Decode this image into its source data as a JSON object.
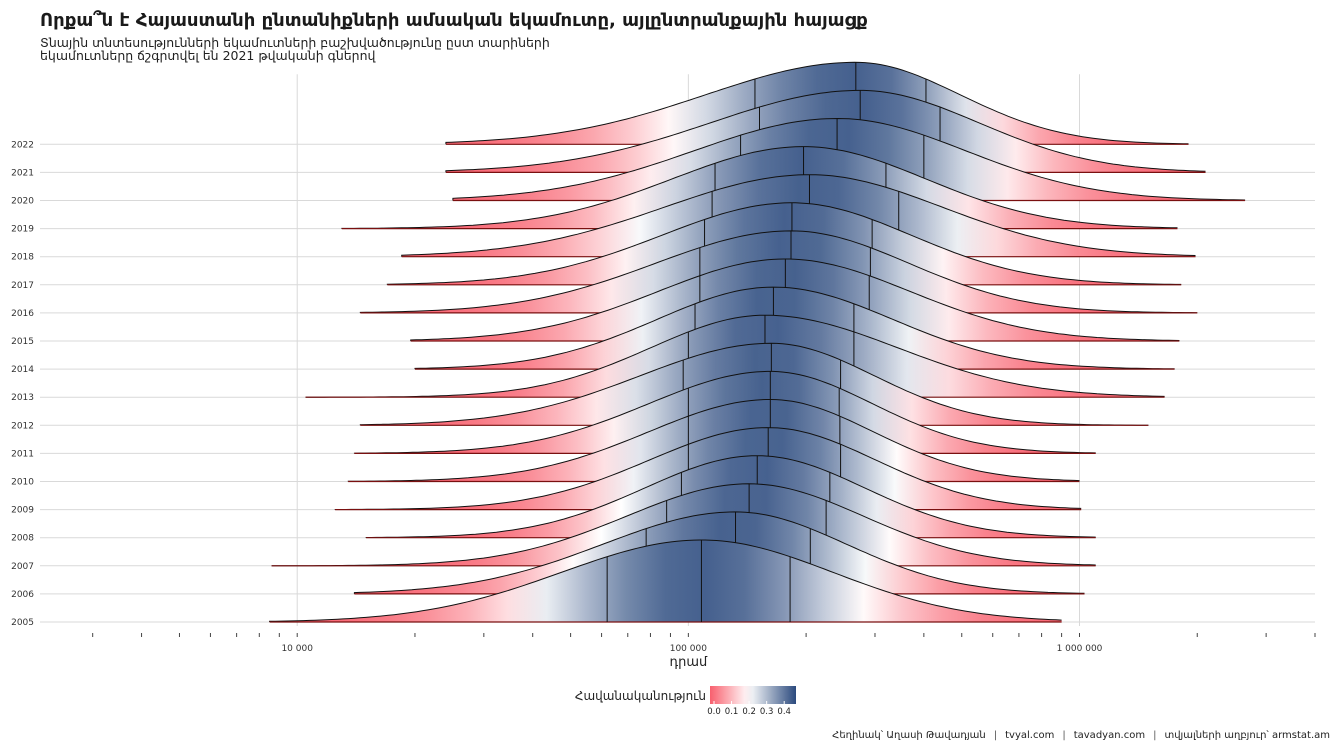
{
  "title": "Որքա՞ն է Հայաստանի ընտանիքների ամսական եկամուտը, այլընտրանքային հայացք",
  "subtitle_line1": "Տնային տնտեսությունների եկամուտների բաշխվածությունը ըստ տարիների",
  "subtitle_line2": "եկամուտները ճշգրտվել են 2021 թվականի գներով",
  "caption": {
    "author": "Հեղինակ՝ Աղասի Թավադյան",
    "site1": "tvyal.com",
    "site2": "tavadyan.com",
    "source": "տվյալների աղբյուր՝ armstat.am",
    "separator": "|"
  },
  "colors": {
    "low": "#f8606e",
    "mid": "#ffffff",
    "high": "#2b4a7e",
    "grid": "#d9d9d9",
    "outline": "#111111"
  },
  "chart_data": {
    "type": "ridgeline",
    "xlabel": "դրամ",
    "x_scale": "log10",
    "xlim": [
      2200,
      4000000
    ],
    "x_ticks": [
      10000,
      100000,
      1000000
    ],
    "x_tick_labels": [
      "10 000",
      "100 000",
      "1 000 000"
    ],
    "legend": {
      "title": "Հավանականություն",
      "position": "bottom",
      "ticks": [
        "0.0",
        "0.1",
        "0.2",
        "0.3",
        "0.4"
      ],
      "range": [
        0,
        0.45
      ]
    },
    "grid": true,
    "series": [
      {
        "year": "2005",
        "min": 8500,
        "q1": 62000,
        "median": 108000,
        "q3": 182000,
        "max": 900000
      },
      {
        "year": "2006",
        "min": 14000,
        "q1": 78000,
        "median": 132000,
        "q3": 205000,
        "max": 1030000
      },
      {
        "year": "2007",
        "min": 8600,
        "q1": 88000,
        "median": 143000,
        "q3": 225000,
        "max": 1100000
      },
      {
        "year": "2008",
        "min": 15000,
        "q1": 96000,
        "median": 150000,
        "q3": 230000,
        "max": 1100000
      },
      {
        "year": "2009",
        "min": 12500,
        "q1": 100000,
        "median": 160000,
        "q3": 245000,
        "max": 1010000
      },
      {
        "year": "2010",
        "min": 13500,
        "q1": 100000,
        "median": 162000,
        "q3": 244000,
        "max": 1000000
      },
      {
        "year": "2011",
        "min": 14000,
        "q1": 100000,
        "median": 162000,
        "q3": 243000,
        "max": 1100000
      },
      {
        "year": "2012",
        "min": 14500,
        "q1": 97000,
        "median": 163000,
        "q3": 245000,
        "max": 1500000
      },
      {
        "year": "2013",
        "min": 10500,
        "q1": 100000,
        "median": 157000,
        "q3": 265000,
        "max": 1650000
      },
      {
        "year": "2014",
        "min": 20000,
        "q1": 104000,
        "median": 165000,
        "q3": 265000,
        "max": 1750000
      },
      {
        "year": "2015",
        "min": 19500,
        "q1": 107000,
        "median": 177000,
        "q3": 290000,
        "max": 1800000
      },
      {
        "year": "2016",
        "min": 14500,
        "q1": 107000,
        "median": 183000,
        "q3": 292000,
        "max": 2000000
      },
      {
        "year": "2017",
        "min": 17000,
        "q1": 110000,
        "median": 184000,
        "q3": 295000,
        "max": 1820000
      },
      {
        "year": "2018",
        "min": 18500,
        "q1": 115000,
        "median": 204000,
        "q3": 345000,
        "max": 1980000
      },
      {
        "year": "2019",
        "min": 13000,
        "q1": 117000,
        "median": 197000,
        "q3": 320000,
        "max": 1780000
      },
      {
        "year": "2020",
        "min": 25000,
        "q1": 136000,
        "median": 240000,
        "q3": 400000,
        "max": 2650000
      },
      {
        "year": "2021",
        "min": 24000,
        "q1": 152000,
        "median": 275000,
        "q3": 440000,
        "max": 2100000
      },
      {
        "year": "2022",
        "min": 24000,
        "q1": 148000,
        "median": 268000,
        "q3": 405000,
        "max": 1900000
      }
    ]
  }
}
